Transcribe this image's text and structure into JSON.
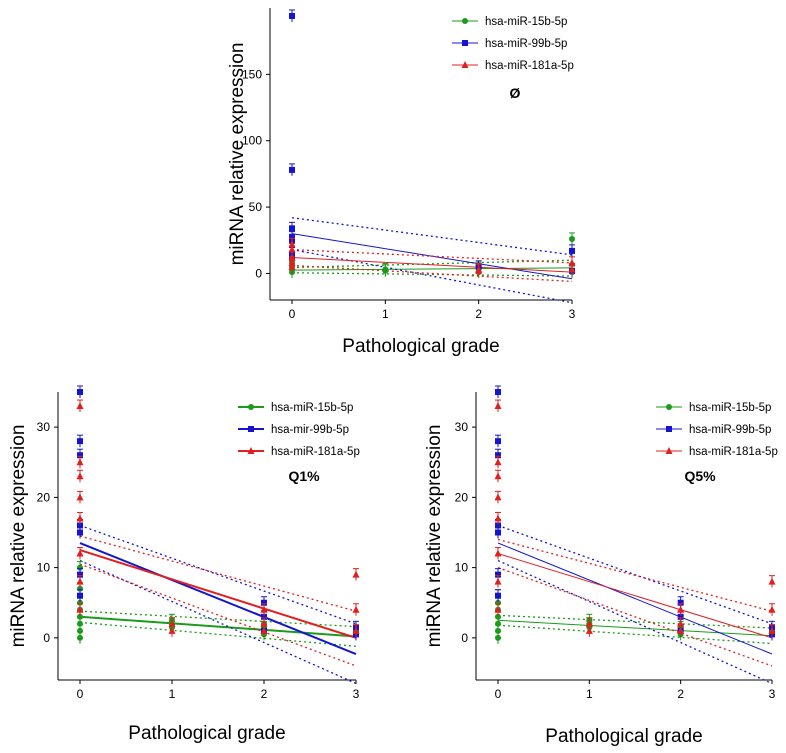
{
  "chart_data": [
    {
      "type": "scatter",
      "panel": "top",
      "annotation": "Ø",
      "xlabel": "Pathological grade",
      "ylabel": "miRNA relative expression",
      "xlim": [
        0,
        3
      ],
      "ylim": [
        -20,
        200
      ],
      "xticks": [
        0,
        1,
        2,
        3
      ],
      "yticks": [
        0,
        50,
        100,
        150
      ],
      "legend_position": "top-right",
      "series": [
        {
          "name": "hsa-miR-15b-5p",
          "color": "#1a9b1a",
          "marker": "circle",
          "x": [
            0,
            0,
            0,
            0,
            0,
            0,
            1,
            1,
            2,
            2,
            3,
            3
          ],
          "y": [
            1,
            3,
            5,
            8,
            10,
            12,
            2,
            3,
            1,
            4,
            26,
            1
          ],
          "fit": [
            2.5,
            4.2
          ],
          "ci_lower": [
            0.5,
            -2
          ],
          "ci_upper": [
            4.5,
            10
          ]
        },
        {
          "name": "hsa-miR-99b-5p",
          "color": "#1515d0",
          "marker": "square",
          "x": [
            0,
            0,
            0,
            0,
            0,
            0,
            0,
            2,
            3,
            3
          ],
          "y": [
            194,
            78,
            34,
            27,
            25,
            15,
            12,
            5,
            17,
            2
          ],
          "fit": [
            30,
            -4
          ],
          "ci_lower": [
            18,
            -22
          ],
          "ci_upper": [
            42,
            14
          ]
        },
        {
          "name": "hsa-miR-181a-5p",
          "color": "#e02020",
          "marker": "triangle",
          "x": [
            0,
            0,
            0,
            0,
            0,
            2,
            2,
            3,
            3
          ],
          "y": [
            22,
            18,
            12,
            8,
            5,
            3,
            2,
            8,
            3
          ],
          "fit": [
            12,
            1
          ],
          "ci_lower": [
            6,
            -6
          ],
          "ci_upper": [
            18,
            8
          ]
        }
      ]
    },
    {
      "type": "scatter",
      "panel": "bottom-left",
      "annotation": "Q1%",
      "xlabel": "Pathological grade",
      "ylabel": "miRNA relative expression",
      "xlim": [
        0,
        3
      ],
      "ylim": [
        -6,
        35
      ],
      "xticks": [
        0,
        1,
        2,
        3
      ],
      "yticks": [
        0,
        10,
        20,
        30
      ],
      "legend_position": "top-right",
      "series": [
        {
          "name": "hsa-miR-15b-5p",
          "color": "#1a9b1a",
          "marker": "circle",
          "x": [
            0,
            0,
            0,
            0,
            0,
            0,
            0,
            0,
            1,
            1,
            1,
            2,
            2,
            2,
            2,
            3,
            3
          ],
          "y": [
            0,
            1,
            2,
            3,
            4,
            5,
            7,
            10,
            1.5,
            2,
            2.5,
            0.5,
            1,
            1.5,
            2,
            0.5,
            1
          ],
          "fit": [
            3,
            0.2
          ],
          "ci_lower": [
            2.2,
            -1.2
          ],
          "ci_upper": [
            3.8,
            1.6
          ]
        },
        {
          "name": "hsa-mir-99b-5p",
          "color": "#1515d0",
          "marker": "square",
          "x": [
            0,
            0,
            0,
            0,
            0,
            0,
            0,
            2,
            2,
            2,
            3,
            3
          ],
          "y": [
            35,
            28,
            26,
            16,
            15,
            9,
            6,
            5,
            3,
            1,
            1.5,
            0.5
          ],
          "fit": [
            13.5,
            -2.3
          ],
          "ci_lower": [
            11,
            -6.5
          ],
          "ci_upper": [
            16,
            2
          ]
        },
        {
          "name": "hsa-miR-181a-5p",
          "color": "#e02020",
          "marker": "triangle",
          "x": [
            0,
            0,
            0,
            0,
            0,
            0,
            0,
            0,
            1,
            1,
            2,
            2,
            2,
            3,
            3,
            3
          ],
          "y": [
            33,
            25,
            23,
            20,
            17,
            12,
            8,
            4,
            1,
            2,
            4,
            2,
            1,
            9,
            4,
            1
          ],
          "fit": [
            12.5,
            0
          ],
          "ci_lower": [
            10.5,
            -4
          ],
          "ci_upper": [
            14.5,
            3.8
          ]
        }
      ]
    },
    {
      "type": "scatter",
      "panel": "bottom-right",
      "annotation": "Q5%",
      "xlabel": "Pathological grade",
      "ylabel": "miRNA relative expression",
      "xlim": [
        0,
        3
      ],
      "ylim": [
        -6,
        35
      ],
      "xticks": [
        0,
        1,
        2,
        3
      ],
      "yticks": [
        0,
        10,
        20,
        30
      ],
      "legend_position": "top-right",
      "series": [
        {
          "name": "hsa-miR-15b-5p",
          "color": "#1a9b1a",
          "marker": "circle",
          "x": [
            0,
            0,
            0,
            0,
            0,
            0,
            0,
            1,
            1,
            1,
            2,
            2,
            2,
            3,
            3
          ],
          "y": [
            0,
            1,
            2,
            3,
            4,
            5,
            6,
            1.5,
            2,
            2.5,
            0.5,
            1,
            1.5,
            0.5,
            1
          ],
          "fit": [
            2.5,
            0.3
          ],
          "ci_lower": [
            1.8,
            -0.8
          ],
          "ci_upper": [
            3.2,
            1.4
          ]
        },
        {
          "name": "hsa-miR-99b-5p",
          "color": "#1515d0",
          "marker": "square",
          "x": [
            0,
            0,
            0,
            0,
            0,
            0,
            0,
            2,
            2,
            2,
            3,
            3
          ],
          "y": [
            35,
            28,
            26,
            16,
            15,
            9,
            6,
            5,
            3,
            1,
            1.5,
            0.5
          ],
          "fit": [
            13.5,
            -2.3
          ],
          "ci_lower": [
            11,
            -6.5
          ],
          "ci_upper": [
            16,
            2
          ]
        },
        {
          "name": "hsa-miR-181a-5p",
          "color": "#e02020",
          "marker": "triangle",
          "x": [
            0,
            0,
            0,
            0,
            0,
            0,
            0,
            0,
            1,
            1,
            2,
            2,
            2,
            3,
            3,
            3
          ],
          "y": [
            33,
            25,
            23,
            20,
            17,
            12,
            8,
            4,
            1,
            2,
            4,
            2,
            1,
            8,
            4,
            1
          ],
          "fit": [
            12,
            0
          ],
          "ci_lower": [
            10,
            -4
          ],
          "ci_upper": [
            14,
            3.8
          ]
        }
      ]
    }
  ]
}
